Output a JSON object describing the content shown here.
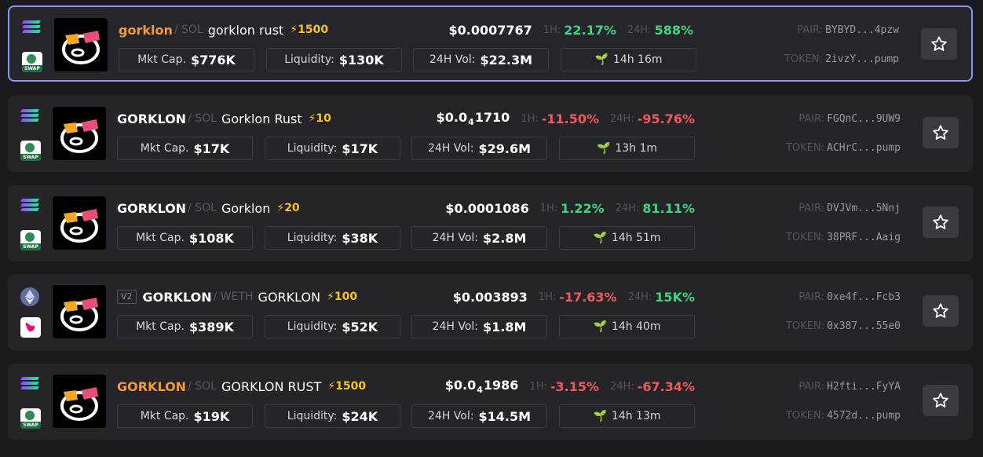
{
  "colors": {
    "background": "#1b1b1f",
    "card": "#242429",
    "selected_border": "#8d94ee",
    "up": "#3dd680",
    "down": "#ef5a5a",
    "boost": "#f7c325",
    "orange_symbol": "#f29b36"
  },
  "labels": {
    "mkt_cap": "Mkt Cap.",
    "liquidity": "Liquidity:",
    "vol": "24H Vol:",
    "h1": "1H:",
    "h24": "24H:",
    "pair": "PAIR:",
    "token": "TOKEN:"
  },
  "rows": [
    {
      "chain_icon": "solana-logo",
      "dex_icon": "raydium-swap-logo",
      "dex_text": "SWAP",
      "version": "",
      "symbol": "gorklon",
      "quote": "/ SOL",
      "name": "gorklon rust",
      "boost": "⚡1500",
      "price_main": "$0.0007767",
      "price_sub": "",
      "price_tail": "",
      "h1": "22.17%",
      "h1_dir": "up",
      "h24": "588%",
      "h24_dir": "up",
      "mkt_cap": "$776K",
      "liquidity": "$130K",
      "volume": "$22.3M",
      "age": "14h 16m",
      "pair": "BYBYD...4pzw",
      "token": "2ivzY...pump"
    },
    {
      "chain_icon": "solana-logo",
      "dex_icon": "raydium-swap-logo",
      "dex_text": "SWAP",
      "version": "",
      "symbol": "GORKLON",
      "quote": "/ SOL",
      "name": "Gorklon Rust",
      "boost": "⚡10",
      "price_main": "$0.0",
      "price_sub": "4",
      "price_tail": "1710",
      "h1": "-11.50%",
      "h1_dir": "down",
      "h24": "-95.76%",
      "h24_dir": "down",
      "mkt_cap": "$17K",
      "liquidity": "$17K",
      "volume": "$29.6M",
      "age": "13h 1m",
      "pair": "FGQnC...9UW9",
      "token": "ACHrC...pump"
    },
    {
      "chain_icon": "solana-logo",
      "dex_icon": "raydium-swap-logo",
      "dex_text": "SWAP",
      "version": "",
      "symbol": "GORKLON",
      "quote": "/ SOL",
      "name": "Gorklon",
      "boost": "⚡20",
      "price_main": "$0.0001086",
      "price_sub": "",
      "price_tail": "",
      "h1": "1.22%",
      "h1_dir": "up",
      "h24": "81.11%",
      "h24_dir": "up",
      "mkt_cap": "$108K",
      "liquidity": "$38K",
      "volume": "$2.8M",
      "age": "14h 51m",
      "pair": "DVJVm...5Nnj",
      "token": "38PRF...Aaig"
    },
    {
      "chain_icon": "ethereum-logo",
      "dex_icon": "uniswap-logo",
      "dex_text": "",
      "version": "V2",
      "symbol": "GORKLON",
      "quote": "/ WETH",
      "name": "GORKLON",
      "boost": "⚡100",
      "price_main": "$0.003893",
      "price_sub": "",
      "price_tail": "",
      "h1": "-17.63%",
      "h1_dir": "down",
      "h24": "15K%",
      "h24_dir": "up",
      "mkt_cap": "$389K",
      "liquidity": "$52K",
      "volume": "$1.8M",
      "age": "14h 40m",
      "pair": "0xe4f...Fcb3",
      "token": "0x387...55e0"
    },
    {
      "chain_icon": "solana-logo",
      "dex_icon": "raydium-swap-logo",
      "dex_text": "SWAP",
      "version": "",
      "symbol": "GORKLON",
      "quote": "/ SOL",
      "name": "GORKLON RUST",
      "boost": "⚡1500",
      "price_main": "$0.0",
      "price_sub": "4",
      "price_tail": "1986",
      "h1": "-3.15%",
      "h1_dir": "down",
      "h24": "-67.34%",
      "h24_dir": "down",
      "mkt_cap": "$19K",
      "liquidity": "$24K",
      "volume": "$14.5M",
      "age": "14h 13m",
      "pair": "H2fti...FyYA",
      "token": "4572d...pump"
    }
  ]
}
